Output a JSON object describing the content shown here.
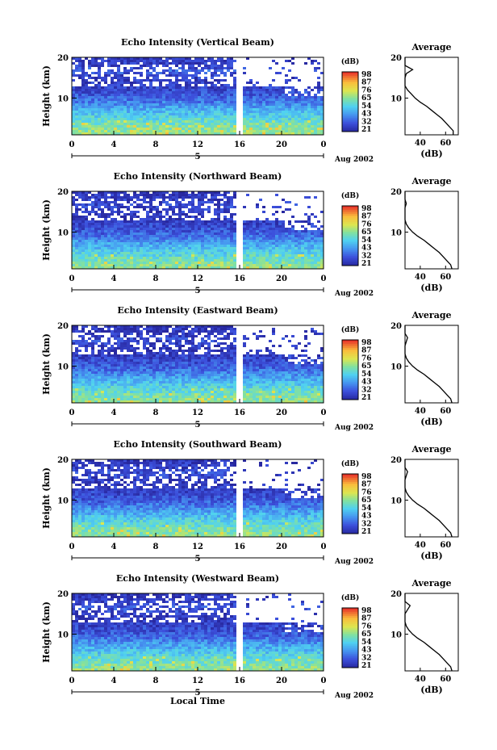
{
  "chart_data": [
    {
      "type": "heatmap",
      "title": "Echo Intensity (Vertical Beam)",
      "ylabel": "Height (km)",
      "x_ticks": [
        "0",
        "4",
        "8",
        "12",
        "16",
        "20",
        "0"
      ],
      "y_ticks": [
        "20",
        "10"
      ],
      "date_label": "5",
      "date_right": "Aug 2002",
      "xlim": [
        0,
        24
      ],
      "ylim": [
        1,
        20
      ],
      "colorbar": {
        "unit": "(dB)",
        "ticks": [
          "98",
          "87",
          "76",
          "65",
          "54",
          "43",
          "32",
          "21"
        ],
        "range": [
          21,
          98
        ]
      },
      "profile": {
        "title": "Average",
        "xlabel": "(dB)",
        "x_ticks": [
          "40",
          "60"
        ],
        "y_ticks": [
          "20",
          "10"
        ],
        "height_km": [
          1,
          2,
          3,
          4,
          5,
          6,
          7,
          8,
          9,
          10,
          11,
          12,
          13,
          14,
          15,
          16,
          17,
          18,
          19,
          20
        ],
        "avg_db": [
          66,
          66,
          63,
          60,
          57,
          53,
          49,
          45,
          40,
          36,
          33,
          30,
          28,
          27,
          27,
          29,
          34,
          28,
          27,
          26
        ]
      }
    },
    {
      "type": "heatmap",
      "title": "Echo Intensity (Northward Beam)",
      "ylabel": "Height (km)",
      "x_ticks": [
        "0",
        "4",
        "8",
        "12",
        "16",
        "20",
        "0"
      ],
      "y_ticks": [
        "20",
        "10"
      ],
      "date_label": "5",
      "date_right": "Aug 2002",
      "xlim": [
        0,
        24
      ],
      "ylim": [
        1,
        20
      ],
      "colorbar": {
        "unit": "(dB)",
        "ticks": [
          "98",
          "87",
          "76",
          "65",
          "54",
          "43",
          "32",
          "21"
        ],
        "range": [
          21,
          98
        ]
      },
      "profile": {
        "title": "Average",
        "xlabel": "(dB)",
        "x_ticks": [
          "40",
          "60"
        ],
        "y_ticks": [
          "20",
          "10"
        ],
        "height_km": [
          1,
          2,
          3,
          4,
          5,
          6,
          7,
          8,
          9,
          10,
          11,
          12,
          13,
          14,
          15,
          16,
          17,
          18,
          19,
          20
        ],
        "avg_db": [
          65,
          64,
          61,
          58,
          55,
          51,
          47,
          43,
          38,
          34,
          31,
          29,
          27,
          26,
          26,
          28,
          29,
          27,
          26,
          25
        ]
      }
    },
    {
      "type": "heatmap",
      "title": "Echo Intensity (Eastward Beam)",
      "ylabel": "Height (km)",
      "x_ticks": [
        "0",
        "4",
        "8",
        "12",
        "16",
        "20",
        "0"
      ],
      "y_ticks": [
        "20",
        "10"
      ],
      "date_label": "5",
      "date_right": "Aug 2002",
      "xlim": [
        0,
        24
      ],
      "ylim": [
        1,
        20
      ],
      "colorbar": {
        "unit": "(dB)",
        "ticks": [
          "98",
          "87",
          "76",
          "65",
          "54",
          "43",
          "32",
          "21"
        ],
        "range": [
          21,
          98
        ]
      },
      "profile": {
        "title": "Average",
        "xlabel": "(dB)",
        "x_ticks": [
          "40",
          "60"
        ],
        "y_ticks": [
          "20",
          "10"
        ],
        "height_km": [
          1,
          2,
          3,
          4,
          5,
          6,
          7,
          8,
          9,
          10,
          11,
          12,
          13,
          14,
          15,
          16,
          17,
          18,
          19,
          20
        ],
        "avg_db": [
          65,
          64,
          61,
          58,
          55,
          51,
          47,
          43,
          38,
          34,
          31,
          29,
          27,
          26,
          26,
          29,
          30,
          27,
          26,
          25
        ]
      }
    },
    {
      "type": "heatmap",
      "title": "Echo Intensity (Southward Beam)",
      "ylabel": "Height (km)",
      "x_ticks": [
        "0",
        "4",
        "8",
        "12",
        "16",
        "20",
        "0"
      ],
      "y_ticks": [
        "20",
        "10"
      ],
      "date_label": "5",
      "date_right": "Aug 2002",
      "xlim": [
        0,
        24
      ],
      "ylim": [
        1,
        20
      ],
      "colorbar": {
        "unit": "(dB)",
        "ticks": [
          "98",
          "87",
          "76",
          "65",
          "54",
          "43",
          "32",
          "21"
        ],
        "range": [
          21,
          98
        ]
      },
      "profile": {
        "title": "Average",
        "xlabel": "(dB)",
        "x_ticks": [
          "40",
          "60"
        ],
        "y_ticks": [
          "20",
          "10"
        ],
        "height_km": [
          1,
          2,
          3,
          4,
          5,
          6,
          7,
          8,
          9,
          10,
          11,
          12,
          13,
          14,
          15,
          16,
          17,
          18,
          19,
          20
        ],
        "avg_db": [
          65,
          64,
          61,
          58,
          55,
          51,
          47,
          43,
          38,
          34,
          31,
          29,
          27,
          26,
          26,
          29,
          30,
          27,
          26,
          25
        ]
      }
    },
    {
      "type": "heatmap",
      "title": "Echo Intensity (Westward Beam)",
      "ylabel": "Height (km)",
      "x_ticks": [
        "0",
        "4",
        "8",
        "12",
        "16",
        "20",
        "0"
      ],
      "y_ticks": [
        "20",
        "10"
      ],
      "date_label": "5",
      "date_right": "Aug 2002",
      "xlabel": "Local Time",
      "xlim": [
        0,
        24
      ],
      "ylim": [
        1,
        20
      ],
      "colorbar": {
        "unit": "(dB)",
        "ticks": [
          "98",
          "87",
          "76",
          "65",
          "54",
          "43",
          "32",
          "21"
        ],
        "range": [
          21,
          98
        ]
      },
      "profile": {
        "title": "Average",
        "xlabel": "(dB)",
        "x_ticks": [
          "40",
          "60"
        ],
        "y_ticks": [
          "20",
          "10"
        ],
        "height_km": [
          1,
          2,
          3,
          4,
          5,
          6,
          7,
          8,
          9,
          10,
          11,
          12,
          13,
          14,
          15,
          16,
          17,
          18,
          19,
          20
        ],
        "avg_db": [
          65,
          64,
          61,
          58,
          55,
          51,
          47,
          43,
          38,
          34,
          31,
          29,
          27,
          26,
          26,
          30,
          32,
          27,
          26,
          25
        ]
      }
    }
  ]
}
